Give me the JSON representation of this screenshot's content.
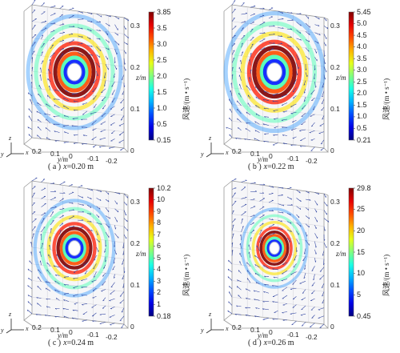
{
  "panels": [
    {
      "caption_prefix": "( a )",
      "caption_var": "x",
      "caption_value": "=0.20 m",
      "colorbar_ticks": [
        "3.85",
        "3.5",
        "3.0",
        "2.5",
        "2.0",
        "1.5",
        "1.0",
        "0.5",
        "0.15"
      ],
      "z_ticks": [
        "0.3",
        "0.2",
        "0.1",
        "0"
      ],
      "y_ticks": [
        "0.2",
        "0.1",
        "0",
        "-0.1",
        "-0.2"
      ],
      "ring_scale": 1.0
    },
    {
      "caption_prefix": "( b )",
      "caption_var": "x",
      "caption_value": "=0.22 m",
      "colorbar_ticks": [
        "5.45",
        "5.0",
        "4.5",
        "4.0",
        "3.5",
        "3.0",
        "2.5",
        "2.0",
        "1.5",
        "1.0",
        "0.5",
        "0.21"
      ],
      "z_ticks": [
        "0.3",
        "0.2",
        "0.1",
        "0"
      ],
      "y_ticks": [
        "0.2",
        "0.1",
        "0",
        "-0.1",
        "-0.2"
      ],
      "ring_scale": 1.05
    },
    {
      "caption_prefix": "( c )",
      "caption_var": "x",
      "caption_value": "=0.24 m",
      "colorbar_ticks": [
        "10.2",
        "10",
        "9",
        "8",
        "7",
        "6",
        "5",
        "4",
        "3",
        "2",
        "1",
        "0.18"
      ],
      "z_ticks": [
        "0.3",
        "0.2",
        "0.1",
        "0"
      ],
      "y_ticks": [
        "0.2",
        "0.1",
        "0",
        "-0.1",
        "-0.2"
      ],
      "ring_scale": 0.85
    },
    {
      "caption_prefix": "( d )",
      "caption_var": "x",
      "caption_value": "=0.26 m",
      "colorbar_ticks": [
        "29.8",
        "25",
        "20",
        "15",
        "10",
        "5",
        "0.45"
      ],
      "z_ticks": [
        "0.3",
        "0.2",
        "0.1",
        "0"
      ],
      "y_ticks": [
        "0.2",
        "0.1",
        "0",
        "-0.1",
        "-0.2"
      ],
      "ring_scale": 0.7
    }
  ],
  "z_axis_label": "z/m",
  "y_axis_label": "y/m",
  "colorbar_label": "风速/(m • s⁻¹)",
  "triad": {
    "z": "z",
    "y": "y",
    "x": "x"
  },
  "colors": {
    "background": "#ffffff",
    "vector": "#2a3f9e",
    "frame": "#999999"
  }
}
